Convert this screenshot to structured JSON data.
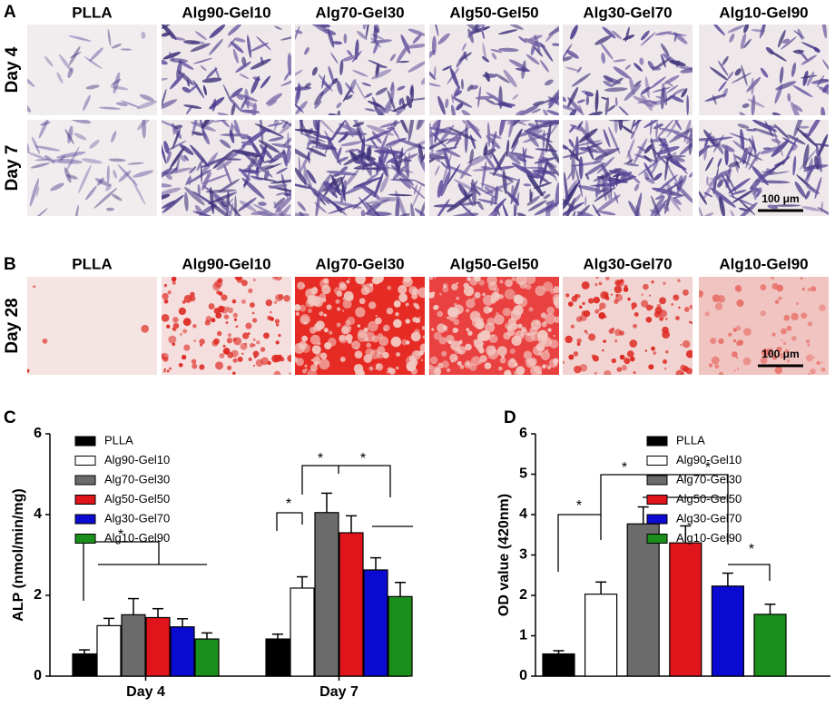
{
  "panels": [
    {
      "letter": "A",
      "columns": [
        "PLLA",
        "Alg90-Gel10",
        "Alg70-Gel30",
        "Alg50-Gel50",
        "Alg30-Gel70",
        "Alg10-Gel90"
      ],
      "rows": [
        "Day 4",
        "Day 7"
      ],
      "scale_bar": "100 μm"
    },
    {
      "letter": "B",
      "columns": [
        "PLLA",
        "Alg90-Gel10",
        "Alg70-Gel30",
        "Alg50-Gel50",
        "Alg30-Gel70",
        "Alg10-Gel90"
      ],
      "rows": [
        "Day 28"
      ],
      "scale_bar": "100 μm"
    }
  ],
  "chart_data": [
    {
      "type": "bar",
      "panel_label": "C",
      "ylabel": "ALP (nmol/min/mg)",
      "categories": [
        "Day 4",
        "Day 7"
      ],
      "ylim": [
        0,
        6
      ],
      "yticks": [
        0,
        2,
        4,
        6
      ],
      "annotations": [
        "*",
        "*",
        "*",
        "*"
      ],
      "series": [
        {
          "name": "PLLA",
          "color": "#000000",
          "values": [
            0.55,
            0.92
          ],
          "errors": [
            0.1,
            0.12
          ]
        },
        {
          "name": "Alg90-Gel10",
          "color": "#ffffff",
          "values": [
            1.25,
            2.18
          ],
          "errors": [
            0.18,
            0.28
          ]
        },
        {
          "name": "Alg70-Gel30",
          "color": "#6b6b6b",
          "values": [
            1.52,
            4.05
          ],
          "errors": [
            0.4,
            0.48
          ]
        },
        {
          "name": "Alg50-Gel50",
          "color": "#e0141b",
          "values": [
            1.45,
            3.55
          ],
          "errors": [
            0.22,
            0.42
          ]
        },
        {
          "name": "Alg30-Gel70",
          "color": "#0a0ad0",
          "values": [
            1.22,
            2.63
          ],
          "errors": [
            0.2,
            0.3
          ]
        },
        {
          "name": "Alg10-Gel90",
          "color": "#1b8f1b",
          "values": [
            0.92,
            1.97
          ],
          "errors": [
            0.15,
            0.35
          ]
        }
      ]
    },
    {
      "type": "bar",
      "panel_label": "D",
      "ylabel": "OD value (420nm)",
      "ylim": [
        0,
        6
      ],
      "yticks": [
        0,
        1,
        2,
        3,
        4,
        5,
        6
      ],
      "annotations": [
        "*",
        "*",
        "*",
        "*"
      ],
      "series": [
        {
          "name": "PLLA",
          "color": "#000000",
          "values": [
            0.55
          ],
          "errors": [
            0.08
          ]
        },
        {
          "name": "Alg90-Gel10",
          "color": "#ffffff",
          "values": [
            2.03
          ],
          "errors": [
            0.3
          ]
        },
        {
          "name": "Alg70-Gel30",
          "color": "#6b6b6b",
          "values": [
            3.77
          ],
          "errors": [
            0.42
          ]
        },
        {
          "name": "Alg50-Gel50",
          "color": "#e0141b",
          "values": [
            3.3
          ],
          "errors": [
            0.42
          ]
        },
        {
          "name": "Alg30-Gel70",
          "color": "#0a0ad0",
          "values": [
            2.23
          ],
          "errors": [
            0.32
          ]
        },
        {
          "name": "Alg10-Gel90",
          "color": "#1b8f1b",
          "values": [
            1.53
          ],
          "errors": [
            0.25
          ]
        }
      ]
    }
  ]
}
